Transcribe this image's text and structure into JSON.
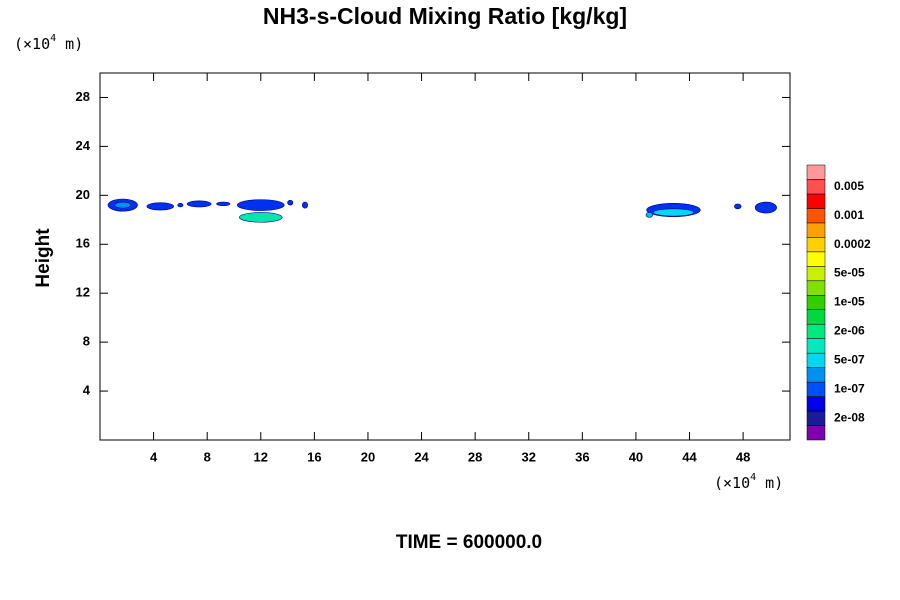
{
  "chart_data": {
    "type": "contour",
    "title": "NH3-s-Cloud Mixing Ratio [kg/kg]",
    "y_label": "Height",
    "x_unit": {
      "base": "(×10",
      "exp": "4",
      "rest": " m)"
    },
    "y_unit": {
      "base": "(×10",
      "exp": "4",
      "rest": " m)"
    },
    "footer": "TIME = 600000.0",
    "xlim": [
      0,
      51.5
    ],
    "ylim": [
      0,
      30
    ],
    "xticks": [
      4,
      8,
      12,
      16,
      20,
      24,
      28,
      32,
      36,
      40,
      44,
      48
    ],
    "yticks": [
      4,
      8,
      12,
      16,
      20,
      24,
      28
    ],
    "colorbar": {
      "colors": [
        "#8000b0",
        "#1a1a9a",
        "#0000e8",
        "#0050ff",
        "#0090f0",
        "#00d8f0",
        "#00e8c0",
        "#00e880",
        "#00d840",
        "#30d000",
        "#80e000",
        "#c8f000",
        "#ffff00",
        "#ffd000",
        "#ffa000",
        "#ff5500",
        "#ff0000",
        "#ff5050",
        "#ff9999"
      ],
      "labels": [
        {
          "value": 2e-08,
          "label": "2e-08"
        },
        {
          "value": 1e-07,
          "label": "1e-07"
        },
        {
          "value": 5e-07,
          "label": "5e-07"
        },
        {
          "value": 2e-06,
          "label": "2e-06"
        },
        {
          "value": 1e-05,
          "label": "1e-05"
        },
        {
          "value": 5e-05,
          "label": "5e-05"
        },
        0.0002,
        0.001,
        0.005
      ]
    },
    "blobs": [
      {
        "x": 1.7,
        "y": 19.2,
        "w": 2.2,
        "h": 1.0,
        "color": "#0030f0"
      },
      {
        "x": 1.7,
        "y": 19.2,
        "w": 1.2,
        "h": 0.5,
        "color": "#0090f0"
      },
      {
        "x": 4.5,
        "y": 19.1,
        "w": 2.0,
        "h": 0.6,
        "color": "#0030f0"
      },
      {
        "x": 6.0,
        "y": 19.2,
        "w": 0.4,
        "h": 0.3,
        "color": "#0030f0"
      },
      {
        "x": 7.4,
        "y": 19.3,
        "w": 1.8,
        "h": 0.5,
        "color": "#0030f0"
      },
      {
        "x": 9.2,
        "y": 19.3,
        "w": 1.0,
        "h": 0.3,
        "color": "#0030f0"
      },
      {
        "x": 12.0,
        "y": 19.2,
        "w": 3.5,
        "h": 0.9,
        "color": "#0030f0"
      },
      {
        "x": 14.2,
        "y": 19.4,
        "w": 0.4,
        "h": 0.4,
        "color": "#0030f0"
      },
      {
        "x": 15.3,
        "y": 19.2,
        "w": 0.4,
        "h": 0.5,
        "color": "#0030f0"
      },
      {
        "x": 12.0,
        "y": 18.2,
        "w": 3.2,
        "h": 0.8,
        "color": "#00e8b0"
      },
      {
        "x": 42.8,
        "y": 18.8,
        "w": 4.0,
        "h": 1.1,
        "color": "#0030f0"
      },
      {
        "x": 42.8,
        "y": 18.6,
        "w": 3.0,
        "h": 0.6,
        "color": "#00d8f0"
      },
      {
        "x": 41.0,
        "y": 18.4,
        "w": 0.5,
        "h": 0.4,
        "color": "#00c0f0"
      },
      {
        "x": 47.6,
        "y": 19.1,
        "w": 0.5,
        "h": 0.4,
        "color": "#0030f0"
      },
      {
        "x": 49.7,
        "y": 19.0,
        "w": 1.6,
        "h": 0.9,
        "color": "#0030f0"
      }
    ]
  }
}
